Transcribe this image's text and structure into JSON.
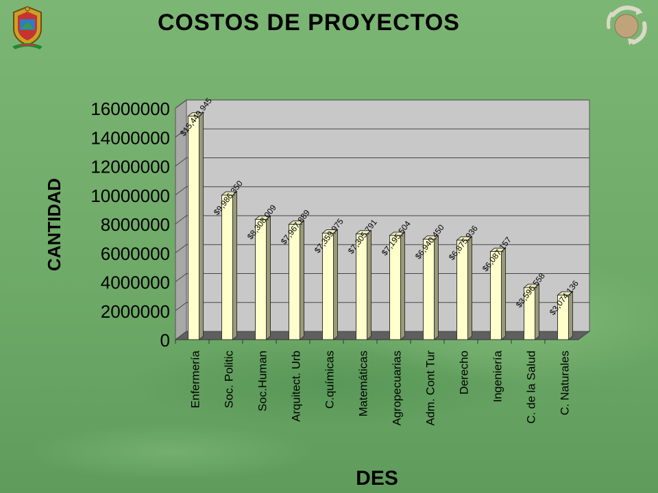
{
  "title": "COSTOS DE PROYECTOS",
  "icons": {
    "left_logo": "university-crest-icon",
    "right_logo": "cycle-emblem-icon"
  },
  "colors": {
    "background": "#74ae6c",
    "plot_wall": "#c8c8c8",
    "plot_floor": "#5f5f5f",
    "bar_front": "#ffffcc",
    "bar_side": "#9a9a78",
    "bar_top": "#e8e8bb"
  },
  "chart_data": {
    "type": "bar",
    "title": "COSTOS DE PROYECTOS",
    "xlabel": "DES",
    "ylabel": "CANTIDAD",
    "ylim": [
      0,
      16000000
    ],
    "yticks": [
      "0",
      "2000000",
      "4000000",
      "6000000",
      "8000000",
      "10000000",
      "12000000",
      "14000000",
      "16000000"
    ],
    "grid": true,
    "categories": [
      "Enfermería",
      "Soc. Politic",
      "Soc.Human",
      "Arquitect. Urb",
      "C.químicas",
      "Matemáticas",
      "Agropecuarias",
      "Adm. Cont Tur",
      "Derecho",
      "Ingeniería",
      "C. de la Salud",
      "C. Naturales"
    ],
    "values": [
      15449945,
      9986350,
      8308009,
      7967889,
      7359975,
      7305791,
      7195504,
      6940450,
      6875936,
      6087157,
      3596558,
      3074136
    ],
    "data_labels": [
      "$15,449,945",
      "$9,986,350",
      "$8,308,009",
      "$7,967,889",
      "$7,359,975",
      "$7,305,791",
      "$7,195,504",
      "$6,940,450",
      "$6,875,936",
      "$6,087,157",
      "$3,596,558",
      "$3,074,136"
    ]
  }
}
